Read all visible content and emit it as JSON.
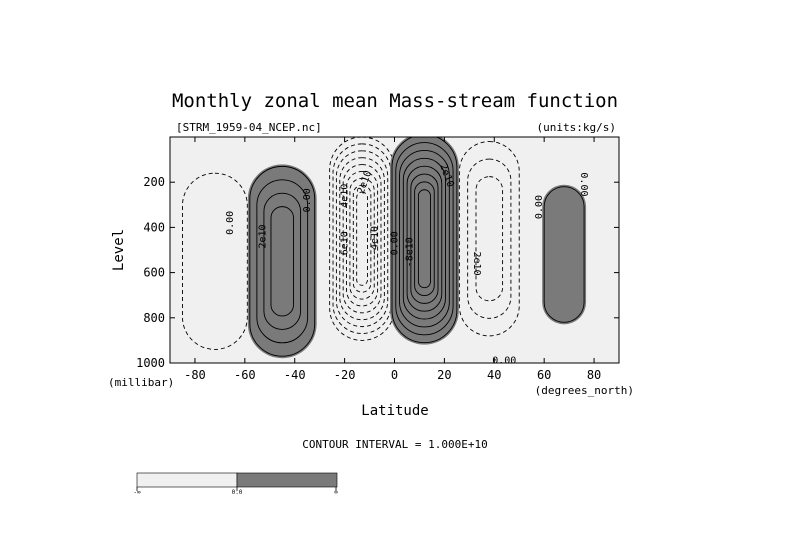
{
  "chart_data": {
    "type": "contour",
    "title": "Monthly zonal mean Mass-stream function",
    "file_label": "[STRM_1959-04_NCEP.nc]",
    "units_label": "(units:kg/s)",
    "xlabel": "Latitude",
    "x_units": "(degrees_north)",
    "ylabel": "Level",
    "y_units": "(millibar)",
    "xlim": [
      -90,
      90
    ],
    "ylim": [
      1000,
      0
    ],
    "x_ticks": [
      -80,
      -60,
      -40,
      -20,
      0,
      20,
      40,
      60,
      80
    ],
    "y_ticks": [
      200,
      400,
      600,
      800,
      1000
    ],
    "contour_interval_text": "CONTOUR INTERVAL = 1.000E+10",
    "contour_interval": 10000000000.0,
    "shading": {
      "negative": "#f0f0f0",
      "positive": "#7a7a7a"
    },
    "colorbar": {
      "labels": [
        "-∞",
        "0.0",
        "∞"
      ]
    },
    "cells": [
      {
        "sign": "negative",
        "center": [
          -72,
          550
        ],
        "peak": -10000000000.0
      },
      {
        "sign": "positive",
        "center": [
          -45,
          550
        ],
        "peak": 40000000000.0
      },
      {
        "sign": "negative",
        "center": [
          -13,
          450
        ],
        "peak": -90000000000.0
      },
      {
        "sign": "positive",
        "center": [
          12,
          450
        ],
        "peak": 80000000000.0
      },
      {
        "sign": "negative",
        "center": [
          38,
          450
        ],
        "peak": -30000000000.0
      },
      {
        "sign": "positive",
        "center": [
          68,
          520
        ],
        "peak": 10000000000.0
      }
    ],
    "contour_labels": [
      {
        "text": "0.00",
        "lat": -66,
        "lev": 380,
        "angle": -90
      },
      {
        "text": "2e10",
        "lat": -53,
        "lev": 440,
        "angle": -90
      },
      {
        "text": "0.00",
        "lat": -35,
        "lev": 280,
        "angle": -90
      },
      {
        "text": "4e10",
        "lat": -20,
        "lev": 260,
        "angle": -90
      },
      {
        "text": "2e10",
        "lat": -12,
        "lev": 200,
        "angle": -70
      },
      {
        "text": "6e10",
        "lat": -20,
        "lev": 470,
        "angle": -90
      },
      {
        "text": "-4e10",
        "lat": -8,
        "lev": 460,
        "angle": -90
      },
      {
        "text": "0.00",
        "lat": 0,
        "lev": 470,
        "angle": -90
      },
      {
        "text": "-8e10",
        "lat": 6,
        "lev": 510,
        "angle": -90
      },
      {
        "text": "2e10",
        "lat": 21,
        "lev": 170,
        "angle": 70
      },
      {
        "text": "2e10",
        "lat": 33,
        "lev": 560,
        "angle": 90
      },
      {
        "text": "0.00",
        "lat": 58,
        "lev": 310,
        "angle": -90
      },
      {
        "text": "0.00",
        "lat": 76,
        "lev": 210,
        "angle": 90
      },
      {
        "text": "0.00",
        "lat": 44,
        "lev": 990,
        "angle": 0
      }
    ]
  }
}
